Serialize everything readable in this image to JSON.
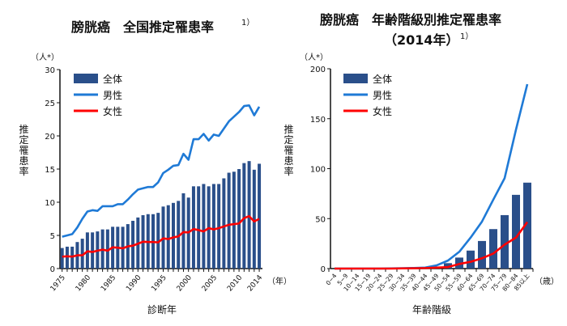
{
  "colors": {
    "total": "#2a4f8a",
    "male": "#1f7ad6",
    "female": "#ff0000",
    "axis": "#111111"
  },
  "chart_data": [
    {
      "type": "bar",
      "title": "膀胱癌　全国推定罹患率",
      "title_sup": "1）",
      "ylabel": "推定罹患率",
      "yunit": "（人*）",
      "xlabel": "診断年",
      "xunit": "（年）",
      "ylim": [
        0,
        30
      ],
      "yticks": [
        0,
        5,
        10,
        15,
        20,
        25,
        30
      ],
      "xticklabels": [
        "1975",
        "1980",
        "1985",
        "1990",
        "1995",
        "2000",
        "2005",
        "2010",
        "2014"
      ],
      "grid": false,
      "legend_position": "top-left",
      "categories": [
        1975,
        1976,
        1977,
        1978,
        1979,
        1980,
        1981,
        1982,
        1983,
        1984,
        1985,
        1986,
        1987,
        1988,
        1989,
        1990,
        1991,
        1992,
        1993,
        1994,
        1995,
        1996,
        1997,
        1998,
        1999,
        2000,
        2001,
        2002,
        2003,
        2004,
        2005,
        2006,
        2007,
        2008,
        2009,
        2010,
        2011,
        2012,
        2013,
        2014
      ],
      "series": [
        {
          "name": "全体",
          "type": "bar",
          "values": [
            3.1,
            3.3,
            3.3,
            4.0,
            4.5,
            5.45,
            5.45,
            5.6,
            5.9,
            5.9,
            6.3,
            6.3,
            6.3,
            6.7,
            7.2,
            7.7,
            8.05,
            8.2,
            8.2,
            8.4,
            9.35,
            9.55,
            9.9,
            10.2,
            11.35,
            10.7,
            12.4,
            12.4,
            12.75,
            12.4,
            12.75,
            12.75,
            13.6,
            14.45,
            14.6,
            15.0,
            15.9,
            16.2,
            14.9,
            15.8
          ]
        },
        {
          "name": "男性",
          "type": "line",
          "values": [
            4.8,
            5.0,
            5.2,
            6.2,
            7.5,
            8.6,
            8.8,
            8.7,
            9.4,
            9.4,
            9.4,
            9.7,
            9.7,
            10.4,
            11.2,
            11.9,
            12.1,
            12.3,
            12.3,
            13.0,
            14.4,
            14.9,
            15.5,
            15.6,
            17.3,
            16.4,
            19.5,
            19.5,
            20.3,
            19.3,
            20.2,
            20.0,
            21.1,
            22.2,
            22.9,
            23.6,
            24.5,
            24.6,
            23.1,
            24.4
          ]
        },
        {
          "name": "女性",
          "type": "line",
          "values": [
            1.8,
            1.85,
            1.8,
            2.0,
            2.0,
            2.6,
            2.5,
            2.7,
            2.85,
            2.7,
            3.2,
            3.15,
            3.05,
            3.35,
            3.45,
            3.75,
            4.05,
            4.0,
            4.0,
            3.95,
            4.55,
            4.45,
            4.7,
            4.85,
            5.5,
            5.45,
            5.95,
            5.8,
            5.6,
            6.1,
            5.9,
            6.1,
            6.35,
            6.6,
            6.7,
            6.8,
            7.6,
            7.9,
            7.1,
            7.5
          ]
        }
      ]
    },
    {
      "type": "bar",
      "title": "膀胱癌　年齢階級別推定罹患率",
      "title_line2": "（2014年）",
      "title_sup": "1）",
      "ylabel": "推定罹患率",
      "yunit": "（人*）",
      "xlabel": "年齢階級",
      "xunit": "（歳）",
      "ylim": [
        0,
        200
      ],
      "yticks": [
        0,
        50,
        100,
        150,
        200
      ],
      "grid": false,
      "legend_position": "top-left",
      "categories": [
        "0−4",
        "5−9",
        "10−14",
        "15−19",
        "20−24",
        "25−29",
        "30−34",
        "35−39",
        "40−44",
        "45−49",
        "50−54",
        "55−59",
        "60−64",
        "65−69",
        "70−74",
        "75−79",
        "80−84",
        "85以上"
      ],
      "series": [
        {
          "name": "全体",
          "type": "bar",
          "values": [
            0,
            0,
            0,
            0,
            0,
            0,
            0.2,
            0.3,
            0.6,
            1.5,
            5.4,
            11,
            18,
            27.6,
            39.5,
            53.5,
            73.8,
            86
          ]
        },
        {
          "name": "男性",
          "type": "line",
          "values": [
            0,
            0,
            0,
            0,
            0,
            0.2,
            0.4,
            0.6,
            1.0,
            3.2,
            8,
            16.8,
            31,
            47,
            69,
            90.5,
            139,
            184.6
          ]
        },
        {
          "name": "女性",
          "type": "line",
          "values": [
            0,
            0,
            0,
            0,
            0,
            0,
            0.2,
            0.3,
            0.5,
            1.0,
            1.5,
            4.6,
            6.8,
            10.3,
            15,
            24,
            31,
            46.5
          ]
        }
      ]
    }
  ]
}
